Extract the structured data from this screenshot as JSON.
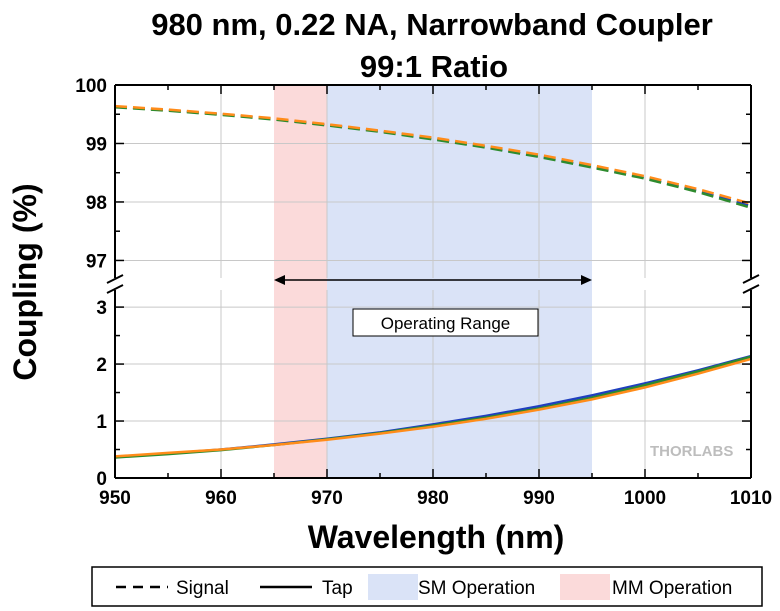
{
  "chart_data": {
    "type": "line",
    "title": "980 nm, 0.22 NA, Narrowband Coupler",
    "subtitle": "99:1 Ratio",
    "xlabel": "Wavelength (nm)",
    "ylabel": "Coupling (%)",
    "xlim": [
      950,
      1010
    ],
    "ylim_upper": [
      96.7,
      100
    ],
    "ylim_lower": [
      0,
      3.3
    ],
    "x_ticks": [
      "950",
      "960",
      "970",
      "980",
      "990",
      "1000",
      "1010"
    ],
    "y_ticks_upper": [
      "97",
      "98",
      "99",
      "100"
    ],
    "y_ticks_lower": [
      "0",
      "1",
      "2",
      "3"
    ],
    "axis_break": true,
    "x": [
      950,
      955,
      960,
      965,
      970,
      975,
      980,
      985,
      990,
      995,
      1000,
      1005,
      1010
    ],
    "series": [
      {
        "name": "Signal",
        "line_style": "dashed",
        "color": "#1f3fbf",
        "values": [
          99.63,
          99.57,
          99.5,
          99.42,
          99.32,
          99.21,
          99.08,
          98.94,
          98.78,
          98.6,
          98.41,
          98.19,
          97.93
        ]
      },
      {
        "name": "Signal",
        "line_style": "dashed",
        "color": "#2e8b2e",
        "values": [
          99.62,
          99.56,
          99.49,
          99.41,
          99.31,
          99.2,
          99.07,
          98.93,
          98.77,
          98.59,
          98.4,
          98.17,
          97.9
        ]
      },
      {
        "name": "Signal",
        "line_style": "dashed",
        "color": "#ff8c1a",
        "values": [
          99.64,
          99.58,
          99.51,
          99.43,
          99.33,
          99.22,
          99.1,
          98.96,
          98.81,
          98.63,
          98.44,
          98.22,
          97.97
        ]
      },
      {
        "name": "Tap",
        "line_style": "solid",
        "color": "#1f3fbf",
        "values": [
          0.37,
          0.43,
          0.5,
          0.59,
          0.69,
          0.8,
          0.94,
          1.09,
          1.26,
          1.45,
          1.66,
          1.89,
          2.14
        ]
      },
      {
        "name": "Tap",
        "line_style": "solid",
        "color": "#2e8b2e",
        "values": [
          0.36,
          0.42,
          0.49,
          0.58,
          0.68,
          0.79,
          0.92,
          1.06,
          1.22,
          1.41,
          1.63,
          1.87,
          2.13
        ]
      },
      {
        "name": "Tap",
        "line_style": "solid",
        "color": "#ff8c1a",
        "values": [
          0.38,
          0.44,
          0.5,
          0.58,
          0.67,
          0.78,
          0.9,
          1.04,
          1.2,
          1.38,
          1.59,
          1.83,
          2.09
        ]
      }
    ],
    "regions": [
      {
        "name": "SM Operation",
        "from": 970,
        "to": 995,
        "color": "#dae3f7"
      },
      {
        "name": "MM Operation",
        "from": 965,
        "to": 970,
        "color": "#fbdada"
      }
    ],
    "annotation": {
      "text": "Operating Range",
      "from": 965,
      "to": 995
    },
    "legend": {
      "placement": "bottom",
      "items": [
        {
          "label": "Signal",
          "kind": "dashed-line"
        },
        {
          "label": "Tap",
          "kind": "solid-line"
        },
        {
          "label": "SM Operation",
          "kind": "fill",
          "color": "#dae3f7"
        },
        {
          "label": "MM Operation",
          "kind": "fill",
          "color": "#fbdada"
        }
      ]
    },
    "watermark": "THORLABS",
    "grid": true
  }
}
